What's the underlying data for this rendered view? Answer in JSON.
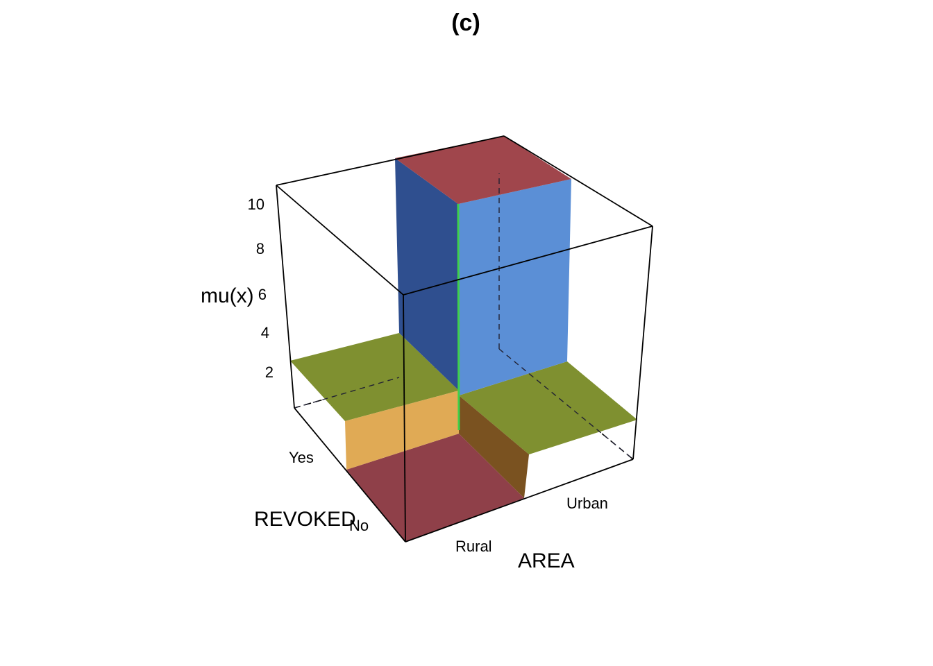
{
  "chart_data": {
    "type": "surface3d",
    "title": "(c)",
    "xlabel": "AREA",
    "ylabel": "REVOKED",
    "zlabel": "mu(x)",
    "x_categories": [
      "Rural",
      "Urban"
    ],
    "y_categories": [
      "No",
      "Yes"
    ],
    "z_ticks": [
      2,
      4,
      6,
      8,
      10
    ],
    "cells": [
      {
        "area": "Rural",
        "revoked": "No",
        "value": 0.0
      },
      {
        "area": "Urban",
        "revoked": "No",
        "value": 1.0
      },
      {
        "area": "Rural",
        "revoked": "Yes",
        "value": 1.9
      },
      {
        "area": "Urban",
        "revoked": "Yes",
        "value": 11.0
      }
    ],
    "colors": {
      "top_low": "#8f4049",
      "top_mid": "#7f9030",
      "top_high": "#a0464c",
      "wall_blue": "#5b8fd6",
      "wall_blue_dark": "#2f4f8f",
      "wall_tan": "#e0aa55",
      "wall_brown": "#7a5220",
      "edge_green": "#3fd04a"
    }
  }
}
